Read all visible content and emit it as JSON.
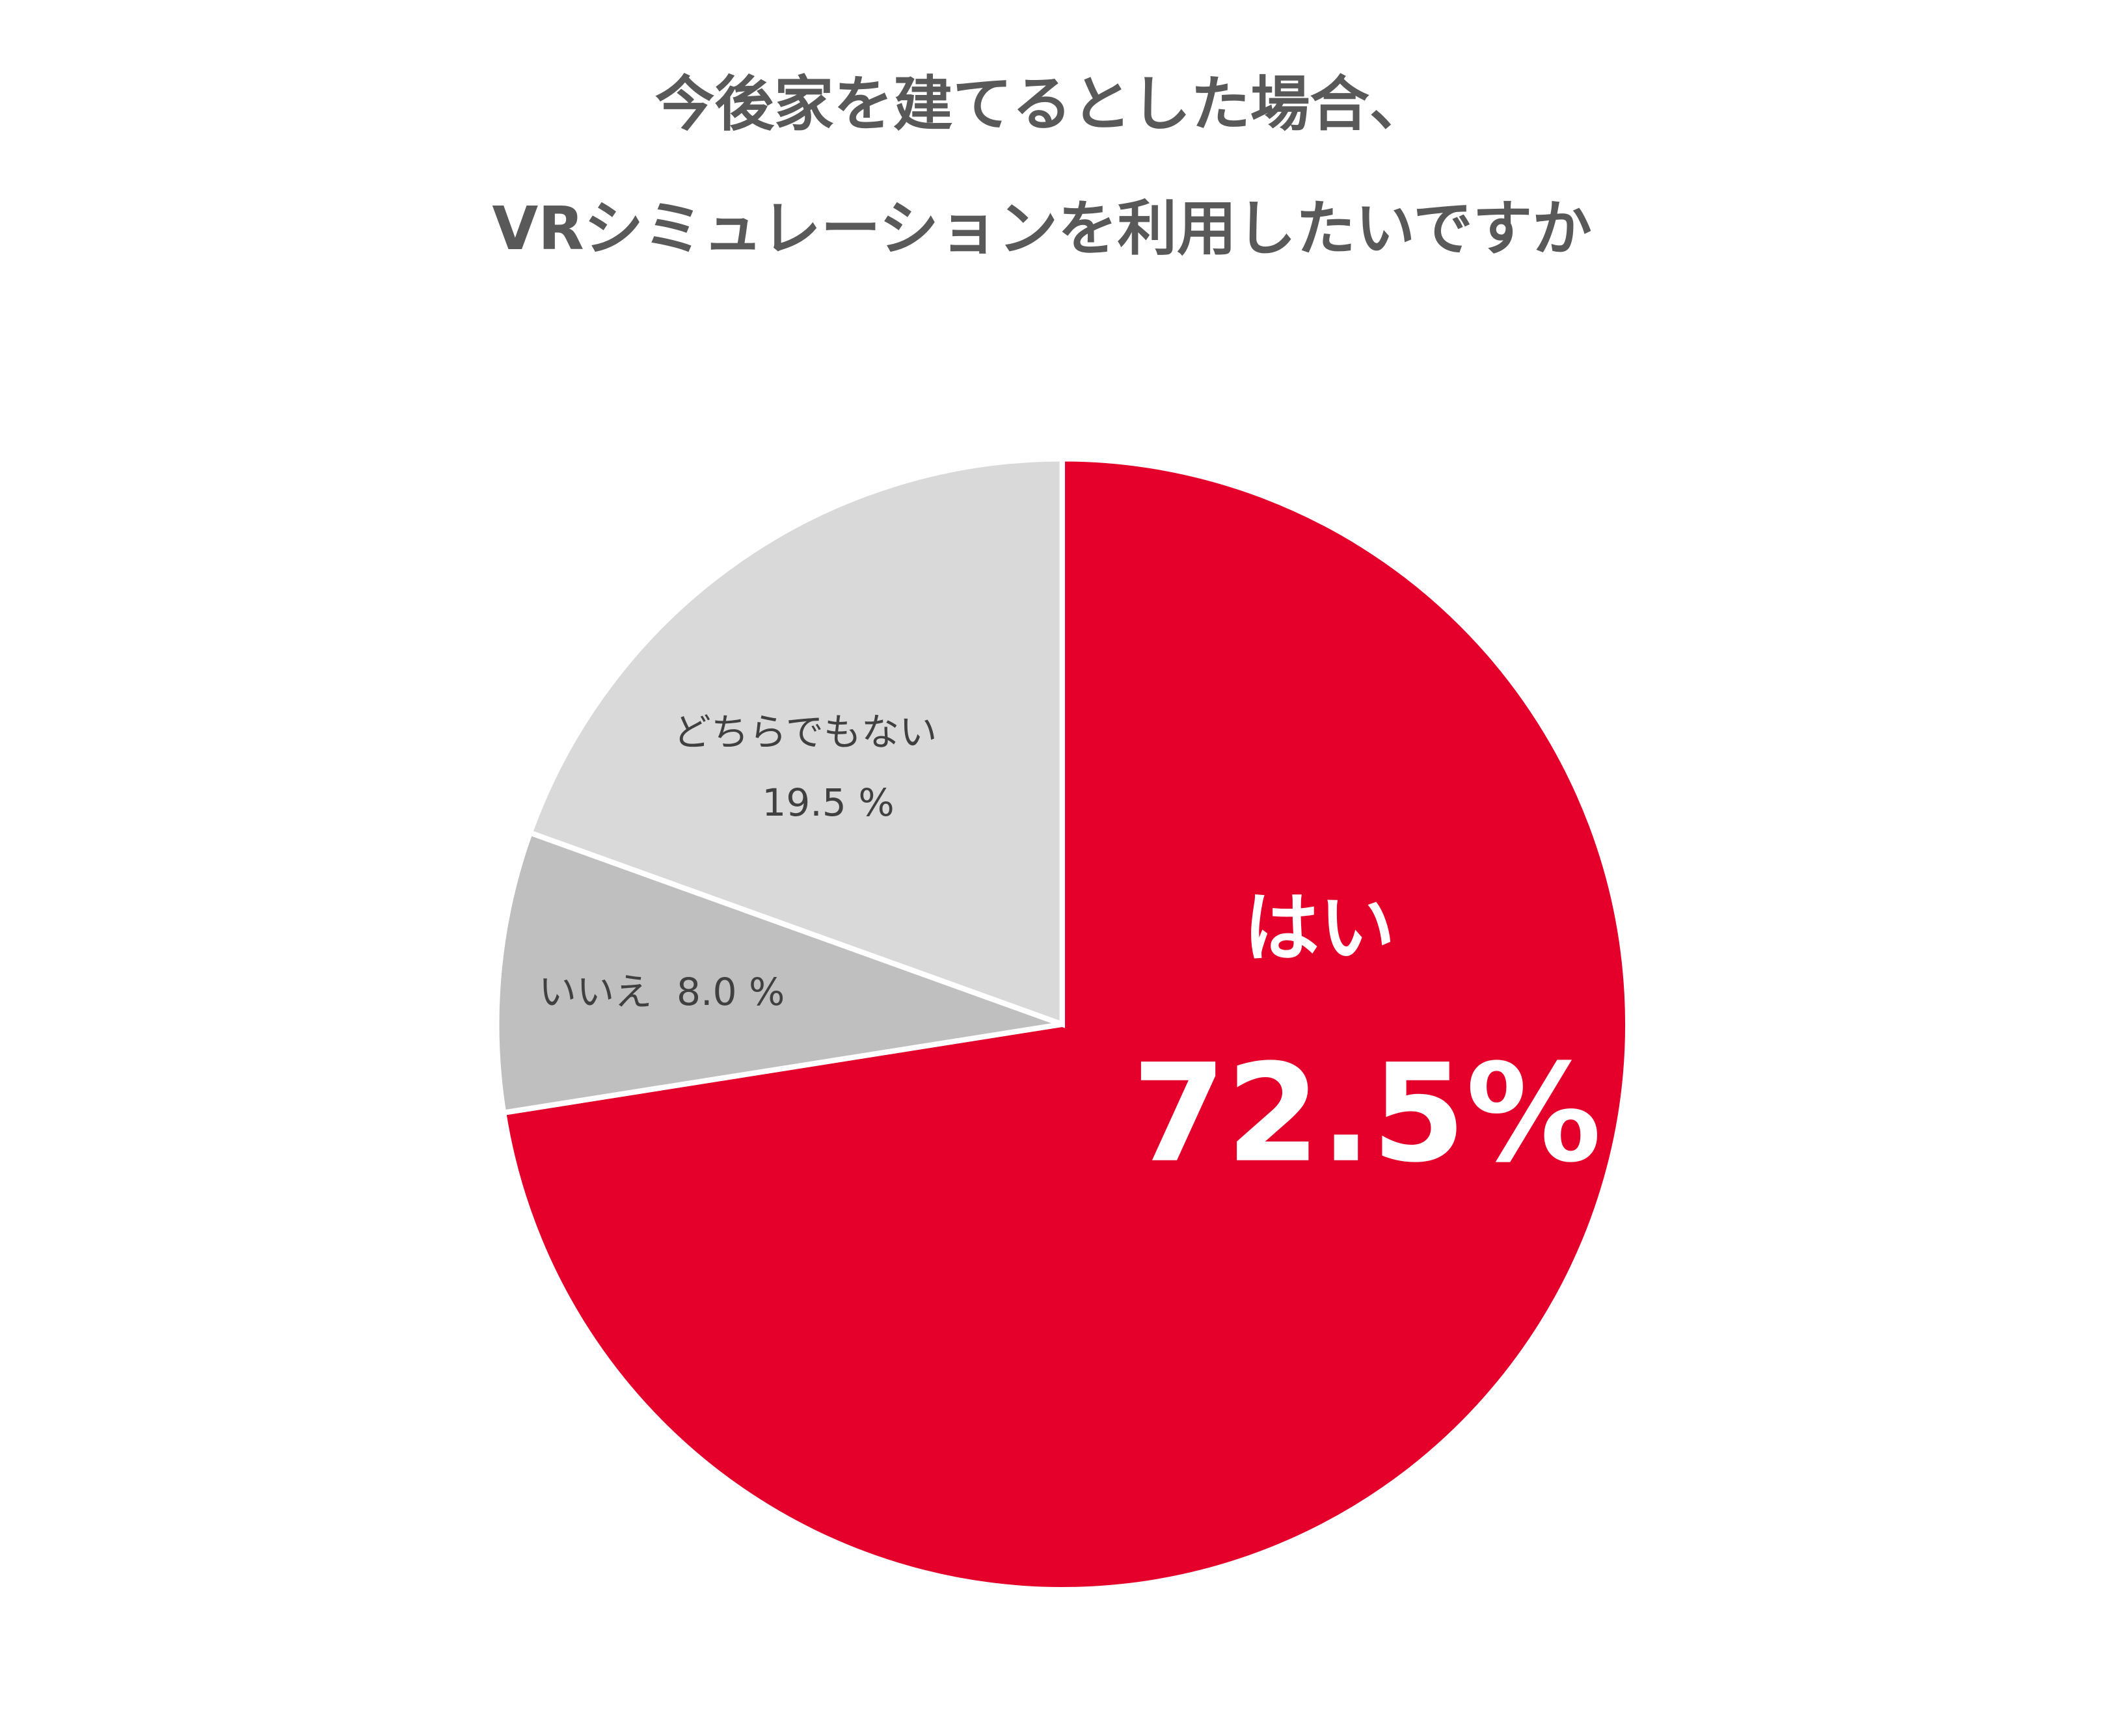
{
  "chart_data": {
    "type": "pie",
    "title": [
      "今後家を建てるとした場合、",
      "VRシミュレーションを利用したいですか"
    ],
    "categories": [
      "はい",
      "いいえ",
      "どちらでもない"
    ],
    "values": [
      72.5,
      8.0,
      19.5
    ],
    "value_labels": [
      "72.5%",
      "8.0 %",
      "19.5 %"
    ],
    "colors": [
      "#e4002b",
      "#bfbfbf",
      "#d9d9d9"
    ]
  }
}
